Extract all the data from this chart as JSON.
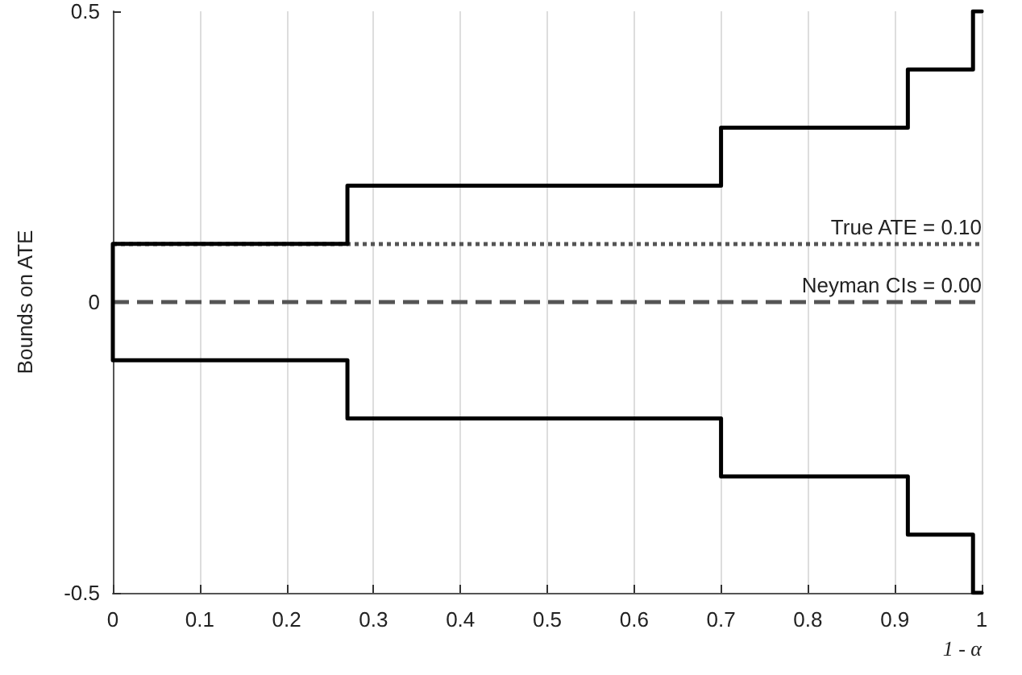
{
  "chart_data": {
    "type": "line",
    "xlabel": "1 - α",
    "ylabel": "Bounds on ATE",
    "x": [
      1,
      0.99,
      0.99,
      0.915,
      0.915,
      0.7,
      0.7,
      0.27,
      0.27,
      0,
      0,
      0.27,
      0.27,
      0.7,
      0.7,
      0.915,
      0.915,
      0.99,
      0.99,
      1
    ],
    "series": [
      {
        "color": "#000000",
        "values": [
          -0.5,
          -0.5,
          -0.4,
          -0.4,
          -0.3,
          -0.3,
          -0.2,
          -0.2,
          -0.1,
          -0.1,
          0.1,
          0.1,
          0.2,
          0.2,
          0.3,
          0.3,
          0.4,
          0.4,
          0.5,
          0.5
        ]
      }
    ],
    "xlim": [
      0,
      1
    ],
    "xticks": [
      0,
      0.1,
      0.2,
      0.3,
      0.4,
      0.5,
      0.6,
      0.7,
      0.8,
      0.9,
      1
    ],
    "ylim": [
      -0.5,
      0.5
    ],
    "yticks": [
      -0.5,
      0,
      0.5
    ],
    "ref_lines": [
      {
        "axis": "y",
        "value": 0.1,
        "label": "True ATE = 0.10",
        "color": "#555555",
        "line_style": "dotted"
      },
      {
        "axis": "y",
        "value": 0,
        "label": "Neyman CIs = 0.00",
        "color": "#555555",
        "line_style": "dashed"
      }
    ],
    "grid": "x",
    "marker": "none",
    "line_style": "solid"
  }
}
